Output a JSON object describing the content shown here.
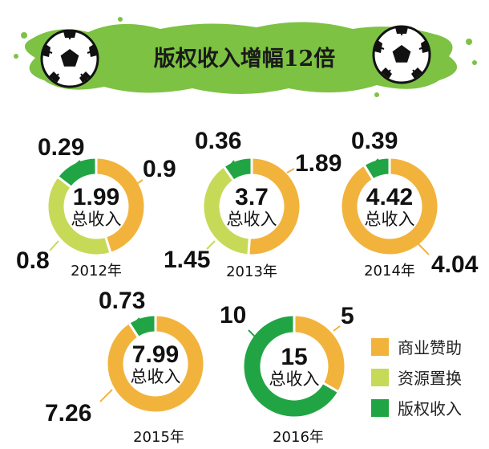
{
  "title": "版权收入增幅12倍",
  "total_label": "总收入",
  "colors": {
    "sponsorship": "#F2B33D",
    "resources": "#C7DA57",
    "copyright": "#21A544",
    "banner": "#7DC243"
  },
  "legend": {
    "items": [
      {
        "label": "商业赞助",
        "color": "#F2B33D"
      },
      {
        "label": "资源置换",
        "color": "#C7DA57"
      },
      {
        "label": "版权收入",
        "color": "#21A544"
      }
    ]
  },
  "chart_data": [
    {
      "type": "pie",
      "year": "2012年",
      "total": "1.99",
      "slices": [
        {
          "name": "商业赞助",
          "value": 0.9,
          "label": "0.9"
        },
        {
          "name": "资源置换",
          "value": 0.8,
          "label": "0.8"
        },
        {
          "name": "版权收入",
          "value": 0.29,
          "label": "0.29"
        }
      ]
    },
    {
      "type": "pie",
      "year": "2013年",
      "total": "3.7",
      "slices": [
        {
          "name": "商业赞助",
          "value": 1.89,
          "label": "1.89"
        },
        {
          "name": "资源置换",
          "value": 1.45,
          "label": "1.45"
        },
        {
          "name": "版权收入",
          "value": 0.36,
          "label": "0.36"
        }
      ]
    },
    {
      "type": "pie",
      "year": "2014年",
      "total": "4.42",
      "slices": [
        {
          "name": "商业赞助",
          "value": 4.04,
          "label": "4.04"
        },
        {
          "name": "版权收入",
          "value": 0.39,
          "label": "0.39"
        }
      ]
    },
    {
      "type": "pie",
      "year": "2015年",
      "total": "7.99",
      "slices": [
        {
          "name": "商业赞助",
          "value": 7.26,
          "label": "7.26"
        },
        {
          "name": "版权收入",
          "value": 0.73,
          "label": "0.73"
        }
      ]
    },
    {
      "type": "pie",
      "year": "2016年",
      "total": "15",
      "slices": [
        {
          "name": "商业赞助",
          "value": 5,
          "label": "5"
        },
        {
          "name": "版权收入",
          "value": 10,
          "label": "10"
        }
      ]
    }
  ]
}
